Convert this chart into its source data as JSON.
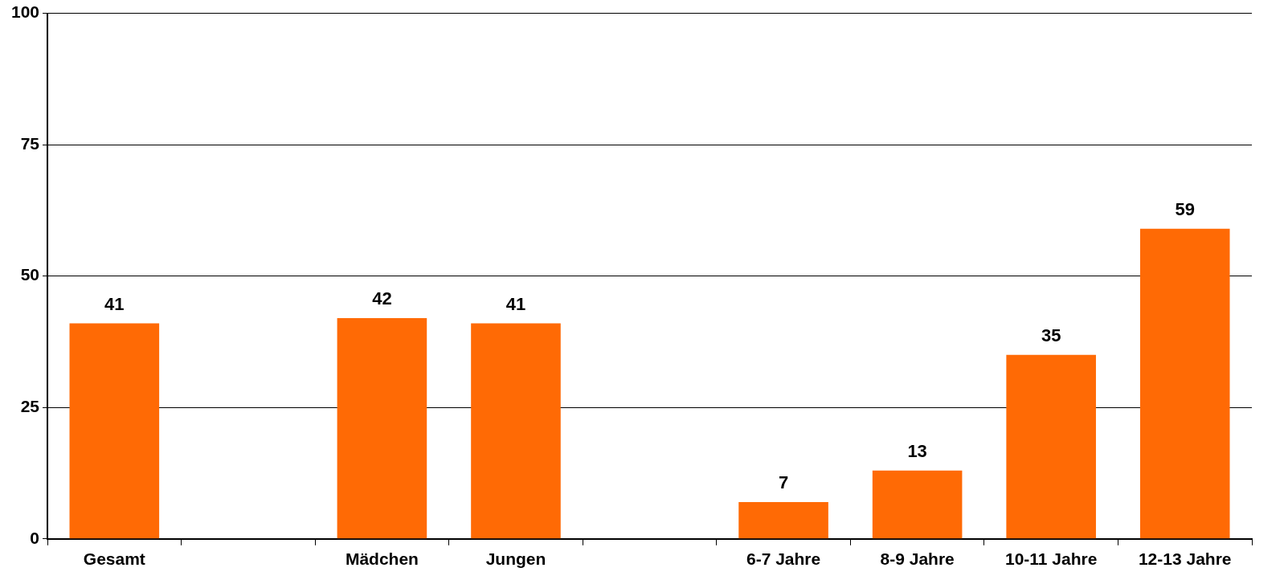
{
  "chart_data": {
    "type": "bar",
    "categories": [
      "Gesamt",
      null,
      "Mädchen",
      "Jungen",
      null,
      "6-7 Jahre",
      "8-9 Jahre",
      "10-11 Jahre",
      "12-13 Jahre"
    ],
    "values": [
      41,
      null,
      42,
      41,
      null,
      7,
      13,
      35,
      59
    ],
    "color": "#ff6a05",
    "ylim": [
      0,
      100
    ],
    "yticks": [
      0,
      25,
      50,
      75,
      100
    ],
    "grid": "y",
    "data_labels": true
  }
}
